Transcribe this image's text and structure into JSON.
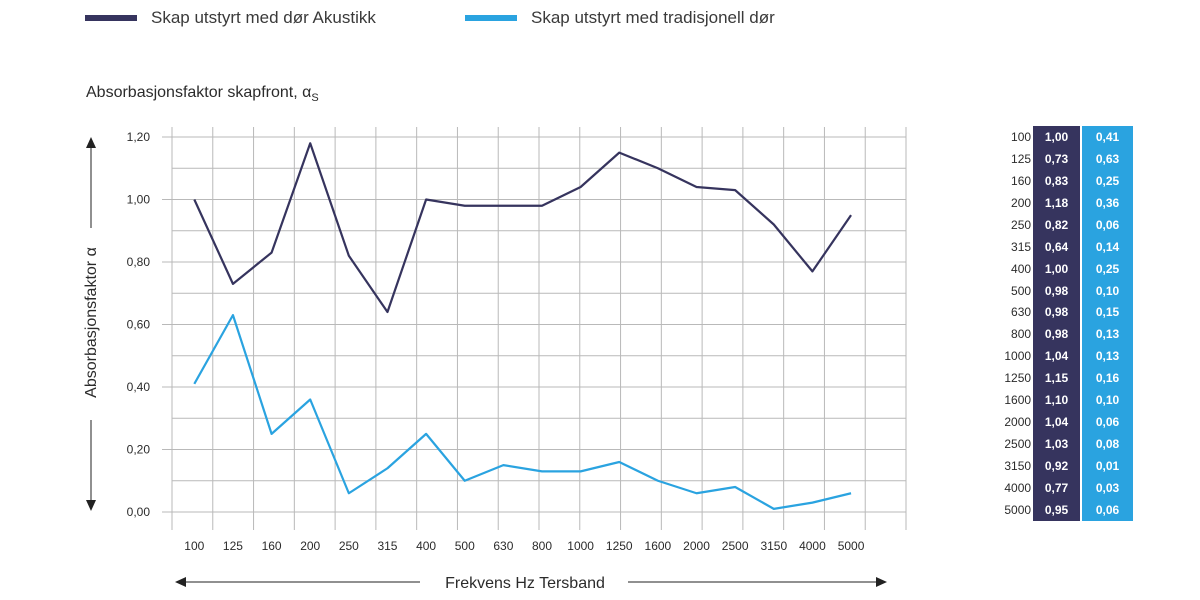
{
  "legend": {
    "series1": "Skap utstyrt med dør Akustikk",
    "series2": "Skap utstyrt med tradisjonell dør"
  },
  "title": {
    "main": "Absorbasjonsfaktor skapfront, α",
    "sub": "S"
  },
  "colors": {
    "series1": "#36345e",
    "series2": "#2aa3e0",
    "grid": "#b9b9b9"
  },
  "chart_data": {
    "type": "line",
    "title": "Absorbasjonsfaktor skapfront, αS",
    "xlabel": "Frekvens Hz Tersband",
    "ylabel": "Absorbasjonsfaktor α",
    "categories": [
      "100",
      "125",
      "160",
      "200",
      "250",
      "315",
      "400",
      "500",
      "630",
      "800",
      "1000",
      "1250",
      "1600",
      "2000",
      "2500",
      "3150",
      "4000",
      "5000"
    ],
    "ylim": [
      0,
      1.2
    ],
    "yticks": [
      "0,00",
      "0,20",
      "0,40",
      "0,60",
      "0,80",
      "1,00",
      "1,20"
    ],
    "grid": true,
    "legend_position": "top-left",
    "series": [
      {
        "name": "Skap utstyrt med dør Akustikk",
        "color": "#36345e",
        "values": [
          1.0,
          0.73,
          0.83,
          1.18,
          0.82,
          0.64,
          1.0,
          0.98,
          0.98,
          0.98,
          1.04,
          1.15,
          1.1,
          1.04,
          1.03,
          0.92,
          0.77,
          0.95
        ]
      },
      {
        "name": "Skap utstyrt med tradisjonell dør",
        "color": "#2aa3e0",
        "values": [
          0.41,
          0.63,
          0.25,
          0.36,
          0.06,
          0.14,
          0.25,
          0.1,
          0.15,
          0.13,
          0.13,
          0.16,
          0.1,
          0.06,
          0.08,
          0.01,
          0.03,
          0.06
        ]
      }
    ]
  },
  "table": {
    "rows": [
      {
        "f": "100",
        "a": "1,00",
        "t": "0,41"
      },
      {
        "f": "125",
        "a": "0,73",
        "t": "0,63"
      },
      {
        "f": "160",
        "a": "0,83",
        "t": "0,25"
      },
      {
        "f": "200",
        "a": "1,18",
        "t": "0,36"
      },
      {
        "f": "250",
        "a": "0,82",
        "t": "0,06"
      },
      {
        "f": "315",
        "a": "0,64",
        "t": "0,14"
      },
      {
        "f": "400",
        "a": "1,00",
        "t": "0,25"
      },
      {
        "f": "500",
        "a": "0,98",
        "t": "0,10"
      },
      {
        "f": "630",
        "a": "0,98",
        "t": "0,15"
      },
      {
        "f": "800",
        "a": "0,98",
        "t": "0,13"
      },
      {
        "f": "1000",
        "a": "1,04",
        "t": "0,13"
      },
      {
        "f": "1250",
        "a": "1,15",
        "t": "0,16"
      },
      {
        "f": "1600",
        "a": "1,10",
        "t": "0,10"
      },
      {
        "f": "2000",
        "a": "1,04",
        "t": "0,06"
      },
      {
        "f": "2500",
        "a": "1,03",
        "t": "0,08"
      },
      {
        "f": "3150",
        "a": "0,92",
        "t": "0,01"
      },
      {
        "f": "4000",
        "a": "0,77",
        "t": "0,03"
      },
      {
        "f": "5000",
        "a": "0,95",
        "t": "0,06"
      }
    ]
  }
}
